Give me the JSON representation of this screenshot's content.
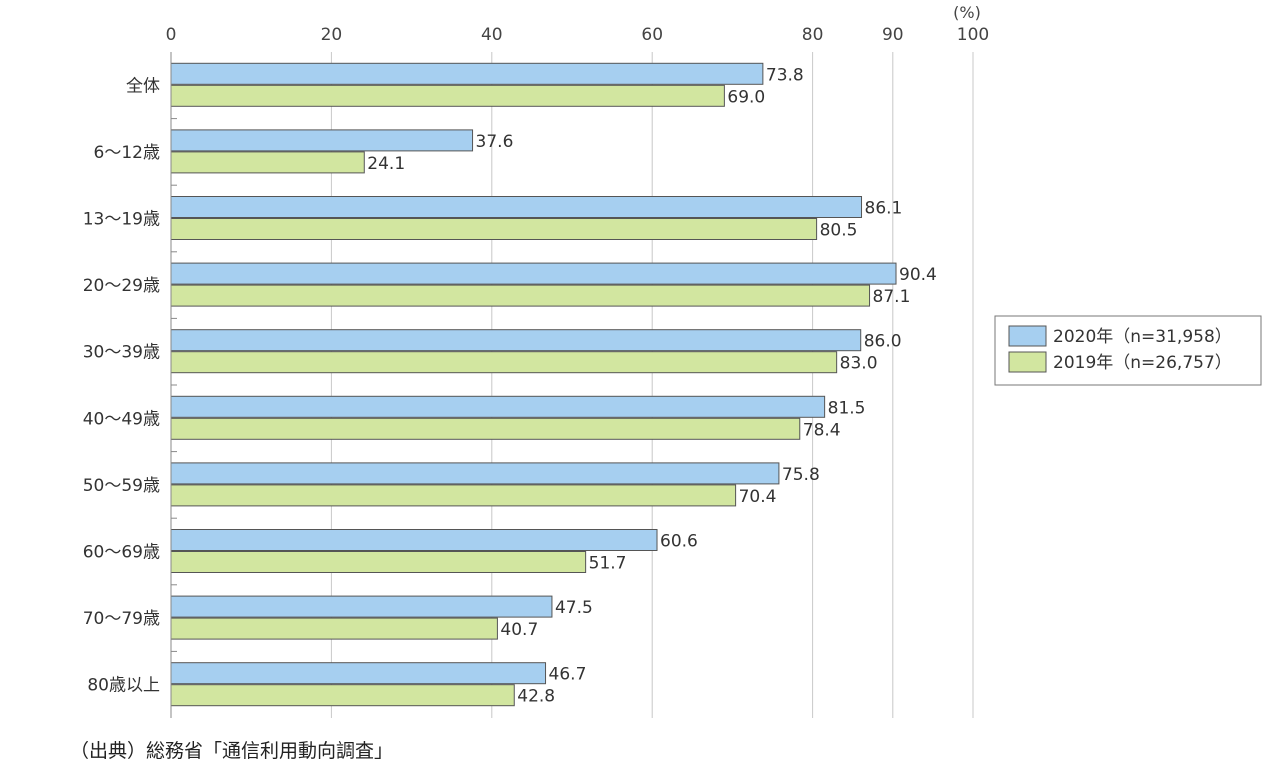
{
  "chart_data": {
    "type": "bar",
    "orientation": "horizontal",
    "unit_label": "(%)",
    "x_ticks": [
      0,
      20,
      40,
      60,
      80,
      90,
      100
    ],
    "xlim": [
      0,
      100
    ],
    "grid": true,
    "legend_position": "right",
    "categories": [
      "全体",
      "6～12歳",
      "13～19歳",
      "20～29歳",
      "30～39歳",
      "40～49歳",
      "50～59歳",
      "60～69歳",
      "70～79歳",
      "80歳以上"
    ],
    "series": [
      {
        "name": "2020年（n=31,958）",
        "color": "#a6cff0",
        "values": [
          73.8,
          37.6,
          86.1,
          90.4,
          86.0,
          81.5,
          75.8,
          60.6,
          47.5,
          46.7
        ]
      },
      {
        "name": "2019年（n=26,757）",
        "color": "#d2e6a0",
        "values": [
          69.0,
          24.1,
          80.5,
          87.1,
          83.0,
          78.4,
          70.4,
          51.7,
          40.7,
          42.8
        ]
      }
    ],
    "value_labels": [
      [
        "73.8",
        "37.6",
        "86.1",
        "90.4",
        "86.0",
        "81.5",
        "75.8",
        "60.6",
        "47.5",
        "46.7"
      ],
      [
        "69.0",
        "24.1",
        "80.5",
        "87.1",
        "83.0",
        "78.4",
        "70.4",
        "51.7",
        "40.7",
        "42.8"
      ]
    ]
  },
  "source": "（出典）総務省「通信利用動向調査」"
}
